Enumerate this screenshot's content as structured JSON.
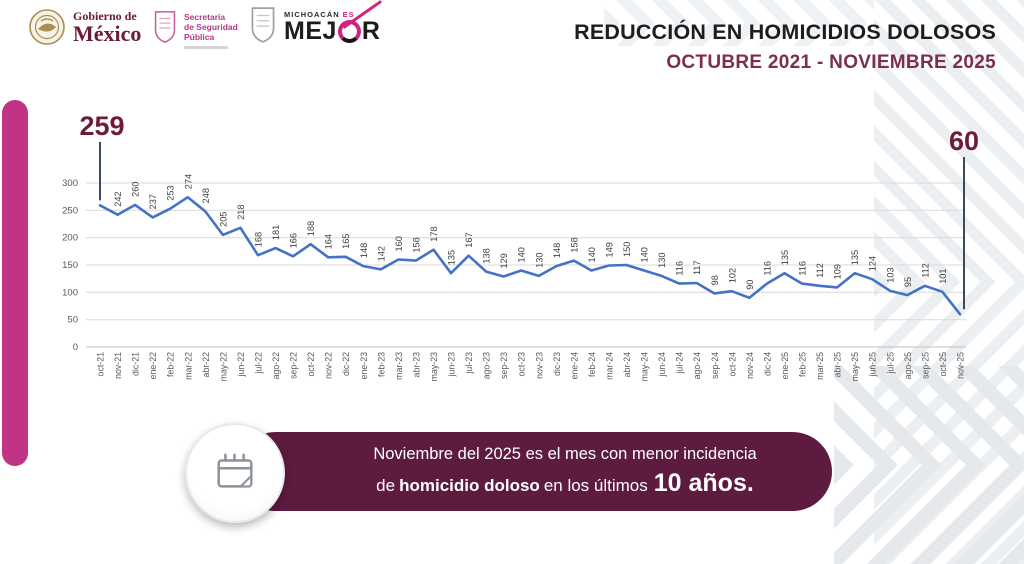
{
  "header": {
    "gobierno_logo": {
      "line1": "Gobierno de",
      "line2": "México"
    },
    "secretaria_logo": {
      "line1": "Secretaría",
      "line2": "de Seguridad",
      "line3": "Pública"
    },
    "michoacan_logo": {
      "top_word": "MICHOACÁN",
      "top_word2": "ES",
      "brand_prefix": "MEJ",
      "brand_suffix": "R"
    },
    "title": "REDUCCIÓN EN HOMICIDIOS DOLOSOS",
    "subtitle": "OCTUBRE 2021 - NOVIEMBRE 2025"
  },
  "chart_data": {
    "type": "line",
    "title": "",
    "xlabel": "",
    "ylabel": "",
    "categories": [
      "oct-21",
      "nov-21",
      "dic-21",
      "ene-22",
      "feb-22",
      "mar-22",
      "abr-22",
      "may-22",
      "jun-22",
      "jul-22",
      "ago-22",
      "sep-22",
      "oct-22",
      "nov-22",
      "dic-22",
      "ene-23",
      "feb-23",
      "mar-23",
      "abr-23",
      "may-23",
      "jun-23",
      "jul-23",
      "ago-23",
      "sep-23",
      "oct-23",
      "nov-23",
      "dic-23",
      "ene-24",
      "feb-24",
      "mar-24",
      "abr-24",
      "may-24",
      "jun-24",
      "jul-24",
      "ago-24",
      "sep-24",
      "oct-24",
      "nov-24",
      "dic-24",
      "ene-25",
      "feb-25",
      "mar-25",
      "abr-25",
      "may-25",
      "jun-25",
      "jul-25",
      "ago-25",
      "sep-25",
      "oct-25",
      "nov-25"
    ],
    "values": [
      259,
      242,
      260,
      237,
      253,
      274,
      248,
      205,
      218,
      168,
      181,
      166,
      188,
      164,
      165,
      148,
      142,
      160,
      158,
      178,
      135,
      167,
      138,
      129,
      140,
      130,
      148,
      158,
      140,
      149,
      150,
      140,
      130,
      116,
      117,
      98,
      102,
      90,
      116,
      135,
      116,
      112,
      109,
      135,
      124,
      103,
      95,
      112,
      101,
      60
    ],
    "ylim": [
      0,
      300
    ],
    "yticks": [
      0,
      50,
      100,
      150,
      200,
      250,
      300
    ],
    "grid": true,
    "legend": false,
    "callouts": {
      "first": "259",
      "last": "60"
    },
    "line_color": "#4472c4",
    "grid_color": "#d9d9d9",
    "axis_line_color": "#bfbfbf",
    "tick_color": "#595959",
    "data_label_color": "#3f3f3f",
    "callout_line_color": "#3a4a63",
    "big_label_color": "#6e1b37"
  },
  "banner": {
    "line1": "Noviembre del 2025 es el mes con menor incidencia",
    "line2_prefix": "de",
    "line2_bold": "homicidio doloso",
    "line2_mid": "en los últimos",
    "line2_big": "10 años.",
    "bg_color": "#5d1b40",
    "icon": "calendar-icon"
  },
  "colors": {
    "left_bar": "#c13485",
    "title": "#1d1d1d",
    "subtitle": "#7d2e50",
    "brand_pink": "#d6207e",
    "gobierno_maroon": "#691c32",
    "secretaria_magenta": "#b5368a"
  }
}
